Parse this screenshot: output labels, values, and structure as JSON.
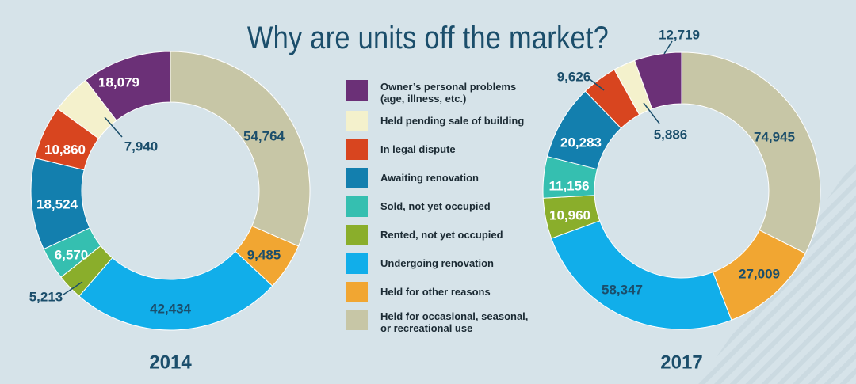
{
  "title": "Why are units off the market?",
  "colors": {
    "background": "#d6e3e9",
    "title": "#1b4e6b",
    "label": "#1b4e6b",
    "label_on_dark": "#ffffff"
  },
  "chart_data": [
    {
      "type": "pie",
      "variant": "donut",
      "year": "2014",
      "categories": [
        "Held for occasional, seasonal, or recreational use",
        "Held for other reasons",
        "Undergoing renovation",
        "Rented, not yet occupied",
        "Sold, not yet occupied",
        "Awaiting renovation",
        "In legal dispute",
        "Held pending sale of building",
        "Owner's personal problems (age, illness, etc.)"
      ],
      "values": [
        54764,
        9485,
        42434,
        5213,
        6570,
        18524,
        10860,
        7940,
        18079
      ],
      "value_labels": [
        "54,764",
        "9,485",
        "42,434",
        "5,213",
        "6,570",
        "18,524",
        "10,860",
        "7,940",
        "18,079"
      ]
    },
    {
      "type": "pie",
      "variant": "donut",
      "year": "2017",
      "categories": [
        "Held for occasional, seasonal, or recreational use",
        "Held for other reasons",
        "Undergoing renovation",
        "Rented, not yet occupied",
        "Sold, not yet occupied",
        "Awaiting renovation",
        "In legal dispute",
        "Held pending sale of building",
        "Owner's personal problems (age, illness, etc.)"
      ],
      "values": [
        74945,
        27009,
        58347,
        10960,
        11156,
        20283,
        9626,
        5886,
        12719
      ],
      "value_labels": [
        "74,945",
        "27,009",
        "58,347",
        "10,960",
        "11,156",
        "20,283",
        "9,626",
        "5,886",
        "12,719"
      ]
    }
  ],
  "legend": [
    {
      "label": "Owner’s personal problems\n(age, illness, etc.)",
      "color": "#6b3077"
    },
    {
      "label": "Held pending sale of building",
      "color": "#f4f1cc"
    },
    {
      "label": "In legal dispute",
      "color": "#d8451f"
    },
    {
      "label": "Awaiting renovation",
      "color": "#137fae"
    },
    {
      "label": "Sold, not yet occupied",
      "color": "#35bfb0"
    },
    {
      "label": "Rented, not yet occupied",
      "color": "#8aae2b"
    },
    {
      "label": "Undergoing renovation",
      "color": "#11aeea"
    },
    {
      "label": "Held for other reasons",
      "color": "#f1a632"
    },
    {
      "label": "Held for occasional, seasonal,\nor recreational use",
      "color": "#c7c6a6"
    }
  ],
  "slice_colors": [
    "#c7c6a6",
    "#f1a632",
    "#11aeea",
    "#8aae2b",
    "#35bfb0",
    "#137fae",
    "#d8451f",
    "#f4f1cc",
    "#6b3077"
  ]
}
